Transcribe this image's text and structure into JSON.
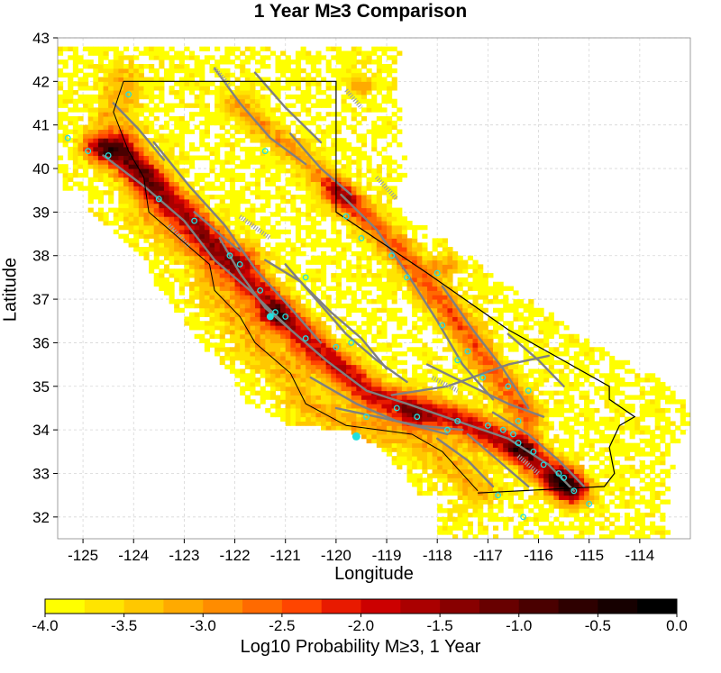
{
  "title": "1 Year M≥3 Comparison",
  "map": {
    "xlabel": "Longitude",
    "ylabel": "Latitude",
    "lon_range": [
      -125.5,
      -113.0
    ],
    "lat_range": [
      31.5,
      43.0
    ],
    "lon_ticks": [
      "-125",
      "-124",
      "-123",
      "-122",
      "-121",
      "-120",
      "-119",
      "-118",
      "-117",
      "-116",
      "-115",
      "-114"
    ],
    "lat_ticks": [
      "32",
      "33",
      "34",
      "35",
      "36",
      "37",
      "38",
      "39",
      "40",
      "41",
      "42",
      "43"
    ],
    "grid": true,
    "layers": [
      "probability-grid",
      "fault-traces",
      "state-boundary",
      "coastline",
      "observed-epicenters"
    ],
    "colors": {
      "faults": "#808080",
      "boundary": "#000000",
      "epicenters": "#22e0e0"
    }
  },
  "colorbar": {
    "label": "Log10 Probability M≥3, 1 Year",
    "ticks": [
      "-4.0",
      "-3.5",
      "-3.0",
      "-2.5",
      "-2.0",
      "-1.5",
      "-1.0",
      "-0.5",
      "0.0"
    ],
    "range": [
      -4.0,
      0.0
    ],
    "colors": [
      "#ffff00",
      "#ffe400",
      "#ffc800",
      "#ffaa00",
      "#ff8c00",
      "#ff6a00",
      "#ff4500",
      "#e81a00",
      "#cc0000",
      "#aa0000",
      "#880000",
      "#680000",
      "#4a0000",
      "#2e0000",
      "#160000",
      "#000000"
    ]
  }
}
